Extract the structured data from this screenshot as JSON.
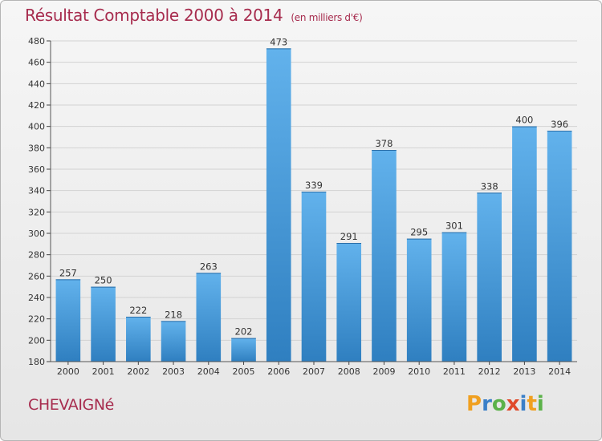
{
  "header": {
    "title": "Résultat Comptable 2000 à 2014",
    "unit": "(en milliers d'€)"
  },
  "commune": "CHEVAIGNé",
  "logo": {
    "letters": [
      "P",
      "r",
      "o",
      "x",
      "i",
      "t",
      "i"
    ],
    "colors": [
      "#f0a020",
      "#3a7fc8",
      "#5cb24a",
      "#e04a2a",
      "#3a7fc8",
      "#f0a020",
      "#5cb24a"
    ]
  },
  "colors": {
    "bar": "#4e9fdc",
    "bar_light": "#62b2ec",
    "bar_dark": "#2f7fc0",
    "title": "#a72c4e"
  },
  "chart_data": {
    "type": "bar",
    "title": "Résultat Comptable 2000 à 2014",
    "ylabel": "en milliers d'€",
    "xlabel": "",
    "categories": [
      "2000",
      "2001",
      "2002",
      "2003",
      "2004",
      "2005",
      "2006",
      "2007",
      "2008",
      "2009",
      "2010",
      "2011",
      "2012",
      "2013",
      "2014"
    ],
    "values": [
      257,
      250,
      222,
      218,
      263,
      202,
      473,
      339,
      291,
      378,
      295,
      301,
      338,
      400,
      396
    ],
    "ylim": [
      180,
      480
    ],
    "yticks": [
      180,
      200,
      220,
      240,
      260,
      280,
      300,
      320,
      340,
      360,
      380,
      400,
      420,
      440,
      460,
      480
    ],
    "grid": true
  }
}
